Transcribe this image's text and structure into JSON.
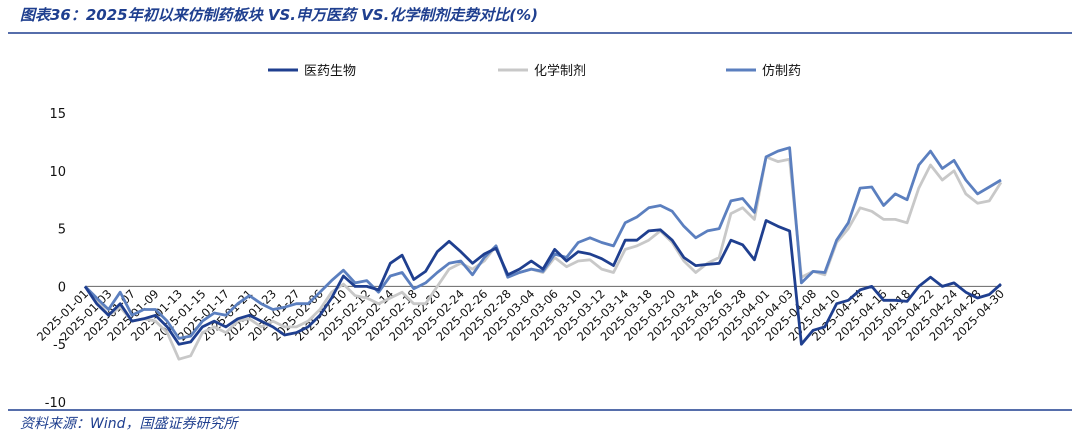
{
  "chart_data": {
    "type": "line",
    "title": "图表36：2025年初以来仿制药板块 VS.申万医药 VS.化学制剂走势对比(%)",
    "source": "资料来源：Wind，国盛证券研究所",
    "categories": [
      "2025-01-01",
      null,
      "2025-01-03",
      null,
      "2025-01-07",
      null,
      "2025-01-09",
      null,
      "2025-01-13",
      null,
      "2025-01-15",
      null,
      "2025-01-17",
      null,
      "2025-01-21",
      null,
      "2025-01-23",
      null,
      "2025-01-27",
      null,
      "2025-02-06",
      null,
      "2025-02-10",
      null,
      "2025-02-12",
      null,
      "2025-02-14",
      null,
      "2025-02-18",
      null,
      "2025-02-20",
      null,
      "2025-02-24",
      null,
      "2025-02-26",
      null,
      "2025-02-28",
      null,
      "2025-03-04",
      null,
      "2025-03-06",
      null,
      "2025-03-10",
      null,
      "2025-03-12",
      null,
      "2025-03-14",
      null,
      "2025-03-18",
      null,
      "2025-03-20",
      null,
      "2025-03-24",
      null,
      "2025-03-26",
      null,
      "2025-03-28",
      null,
      "2025-04-01",
      null,
      "2025-04-03",
      null,
      "2025-04-08",
      null,
      "2025-04-10",
      null,
      "2025-04-14",
      null,
      "2025-04-16",
      null,
      "2025-04-18",
      null,
      "2025-04-22",
      null,
      "2025-04-24",
      null,
      "2025-04-28",
      null,
      "2025-04-30"
    ],
    "series": [
      {
        "name": "医药生物",
        "color": "#1f3f8f",
        "values": [
          0,
          -1.5,
          -2.5,
          -1.5,
          -3,
          -2.8,
          -2.5,
          -3.5,
          -5,
          -4.8,
          -3.5,
          -3,
          -3.5,
          -2.8,
          -2.5,
          -3,
          -3.5,
          -4.2,
          -4,
          -3.5,
          -2.5,
          -1,
          0.9,
          0,
          0,
          -0.3,
          2,
          2.7,
          0.6,
          1.3,
          3,
          3.9,
          3,
          2,
          2.8,
          3.3,
          1,
          1.5,
          2.2,
          1.5,
          3.2,
          2.2,
          3,
          2.8,
          2.4,
          1.8,
          4,
          4,
          4.8,
          4.9,
          4,
          2.5,
          1.8,
          1.9,
          2,
          4,
          3.6,
          2.3,
          5.7,
          5.2,
          4.8,
          -5,
          -3.8,
          -3.5,
          -1.5,
          -1.2,
          -0.3,
          0,
          -1.2,
          -1.2,
          -1.3,
          0,
          0.8,
          0,
          0.3,
          -0.5,
          -1,
          -0.7,
          0.2
        ]
      },
      {
        "name": "化学制剂",
        "color": "#c8c8c8",
        "values": [
          0,
          -1.2,
          -2.5,
          -1.8,
          -3,
          -2.8,
          -3,
          -4,
          -6.3,
          -6,
          -4,
          -3.5,
          -4,
          -3,
          -2.8,
          -3.5,
          -3,
          -3.5,
          -3.5,
          -3,
          -2,
          -0.5,
          0.2,
          -0.8,
          -1,
          -1.5,
          -1,
          -0.5,
          -1.5,
          -1.5,
          0,
          1.5,
          2,
          1.5,
          2.2,
          3.5,
          0.8,
          1.2,
          1.5,
          1.2,
          2.5,
          1.7,
          2.2,
          2.3,
          1.5,
          1.2,
          3.2,
          3.5,
          4,
          4.8,
          3.8,
          2.2,
          1.2,
          2,
          2.5,
          6.3,
          6.8,
          5.8,
          11.2,
          10.8,
          11,
          0.8,
          1.3,
          1,
          3.8,
          5,
          6.8,
          6.5,
          5.8,
          5.8,
          5.5,
          8.5,
          10.5,
          9.2,
          10,
          8,
          7.2,
          7.4,
          9
        ]
      },
      {
        "name": "仿制药",
        "color": "#5b7fbf",
        "values": [
          0,
          -1,
          -2,
          -0.5,
          -2.5,
          -2,
          -2,
          -3,
          -4.5,
          -4.3,
          -3,
          -2.3,
          -2.5,
          -1.5,
          -0.8,
          -1.5,
          -2,
          -1.8,
          -1.5,
          -1.5,
          -0.5,
          0.5,
          1.4,
          0.3,
          0.5,
          -0.5,
          0.9,
          1.2,
          -0.2,
          0.3,
          1.2,
          2,
          2.2,
          1,
          2.5,
          3.5,
          0.8,
          1.2,
          1.5,
          1.3,
          2.8,
          2.5,
          3.8,
          4.2,
          3.8,
          3.5,
          5.5,
          6,
          6.8,
          7,
          6.5,
          5.2,
          4.2,
          4.8,
          5,
          7.4,
          7.6,
          6.4,
          11.2,
          11.7,
          12,
          0.3,
          1.3,
          1.2,
          4,
          5.5,
          8.5,
          8.6,
          7,
          8,
          7.5,
          10.5,
          11.7,
          10.2,
          10.9,
          9.2,
          8,
          8.6,
          9.2
        ]
      }
    ],
    "ylim": [
      -10,
      15
    ],
    "yticks": [
      -10,
      -5,
      0,
      5,
      10,
      15
    ],
    "grid": false
  }
}
